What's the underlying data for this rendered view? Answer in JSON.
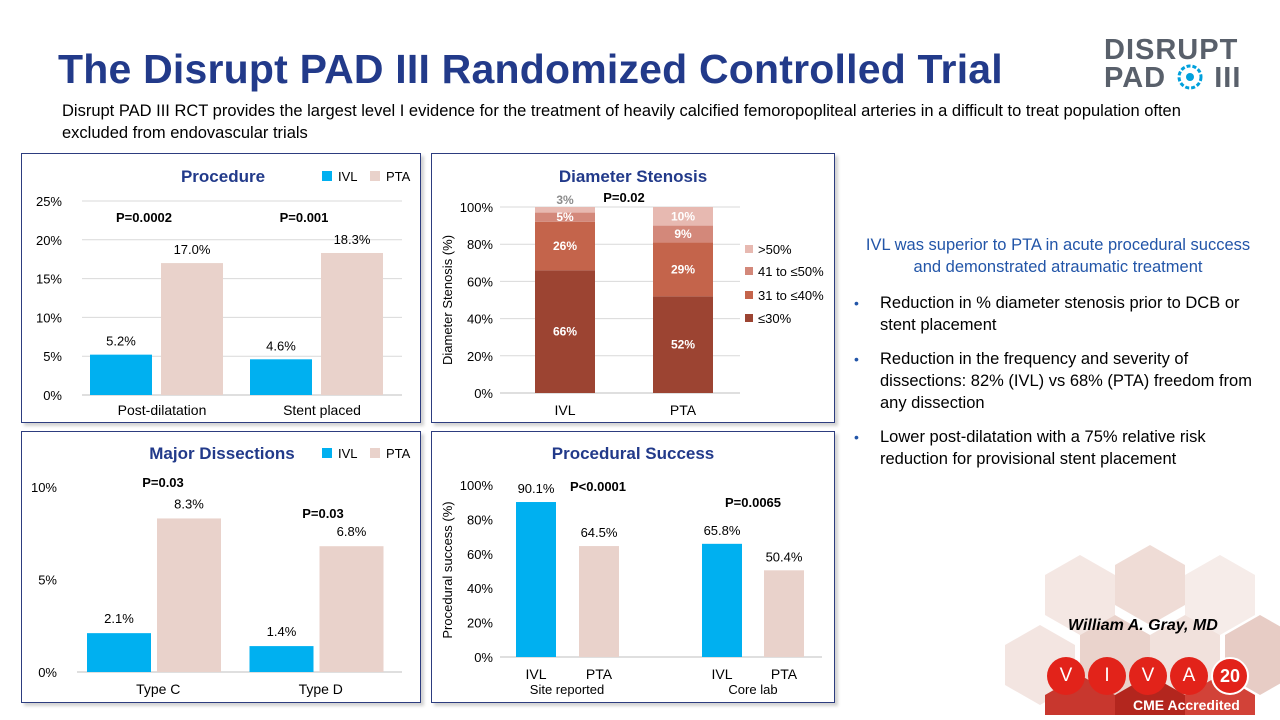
{
  "slide": {
    "title": "The Disrupt PAD III Randomized Controlled Trial",
    "subtitle": "Disrupt PAD III RCT provides the largest level I evidence for the treatment of heavily calcified femoropopliteal arteries in a difficult to treat population often excluded from endovascular trials",
    "logo_line1": "DISRUPT",
    "logo_line2": "PAD",
    "logo_roman": "III",
    "highlight": "IVL was superior to PTA in acute procedural success and demonstrated atraumatic treatment",
    "bullets": [
      "Reduction in % diameter stenosis prior to DCB or stent placement",
      "Reduction in the frequency and severity of dissections:  82% (IVL) vs 68% (PTA) freedom from any dissection",
      "Lower post-dilatation with a 75% relative risk reduction for provisional stent placement"
    ],
    "author": "William A. Gray, MD",
    "viva_letters": [
      "V",
      "I",
      "V",
      "A"
    ],
    "viva_year": "20",
    "cme": "CME Accredited"
  },
  "colors": {
    "title": "#223a8a",
    "ivl": "#00b0f0",
    "pta": "#e9d2cb",
    "stenosis_low": "#9c4432",
    "stenosis_mid": "#c4644b",
    "stenosis_high": "#d3887a",
    "stenosis_top": "#e7b9b1",
    "accent": "#e2231a"
  },
  "chart_data": [
    {
      "type": "bar",
      "title": "Procedure",
      "categories": [
        "Post-dilatation",
        "Stent placed"
      ],
      "series": [
        {
          "name": "IVL",
          "values": [
            5.2,
            4.6
          ]
        },
        {
          "name": "PTA",
          "values": [
            17.0,
            18.3
          ]
        }
      ],
      "data_labels": {
        "IVL": [
          "5.2%",
          "4.6%"
        ],
        "PTA": [
          "17.0%",
          "18.3%"
        ]
      },
      "pvalues": [
        "P=0.0002",
        "P=0.001"
      ],
      "yticks": [
        "0%",
        "5%",
        "10%",
        "15%",
        "20%",
        "25%"
      ],
      "ylim": [
        0,
        25
      ],
      "ylabel": "",
      "legend": "top-right",
      "grid": true
    },
    {
      "type": "bar",
      "stacked": true,
      "title": "Diameter Stenosis",
      "categories": [
        "IVL",
        "PTA"
      ],
      "series": [
        {
          "name": "≤30%",
          "values": [
            66,
            52
          ]
        },
        {
          "name": "31 to ≤40%",
          "values": [
            26,
            29
          ]
        },
        {
          "name": "41 to ≤50%",
          "values": [
            5,
            9
          ]
        },
        {
          "name": ">50%",
          "values": [
            3,
            10
          ]
        }
      ],
      "pvalues": [
        "P=0.02"
      ],
      "yticks": [
        "0%",
        "20%",
        "40%",
        "60%",
        "80%",
        "100%"
      ],
      "ylim": [
        0,
        100
      ],
      "ylabel": "Diameter Stenosis (%)",
      "legend": "right",
      "grid": true
    },
    {
      "type": "bar",
      "title": "Major Dissections",
      "categories": [
        "Type C",
        "Type D"
      ],
      "series": [
        {
          "name": "IVL",
          "values": [
            2.1,
            1.4
          ]
        },
        {
          "name": "PTA",
          "values": [
            8.3,
            6.8
          ]
        }
      ],
      "data_labels": {
        "IVL": [
          "2.1%",
          "1.4%"
        ],
        "PTA": [
          "8.3%",
          "6.8%"
        ]
      },
      "pvalues": [
        "P=0.03",
        "P=0.03"
      ],
      "yticks": [
        "0%",
        "5%",
        "10%"
      ],
      "ylim": [
        0,
        10
      ],
      "ylabel": "",
      "legend": "top-right",
      "grid": false
    },
    {
      "type": "bar",
      "title": "Procedural Success",
      "groups": [
        "Site reported",
        "Core lab"
      ],
      "categories": [
        "IVL",
        "PTA",
        "IVL",
        "PTA"
      ],
      "values": [
        90.1,
        64.5,
        65.8,
        50.4
      ],
      "data_labels": [
        "90.1%",
        "64.5%",
        "65.8%",
        "50.4%"
      ],
      "pvalues": [
        "P<0.0001",
        "P=0.0065"
      ],
      "yticks": [
        "0%",
        "20%",
        "40%",
        "60%",
        "80%",
        "100%"
      ],
      "ylim": [
        0,
        100
      ],
      "ylabel": "Procedural success (%)",
      "grid": false
    }
  ]
}
